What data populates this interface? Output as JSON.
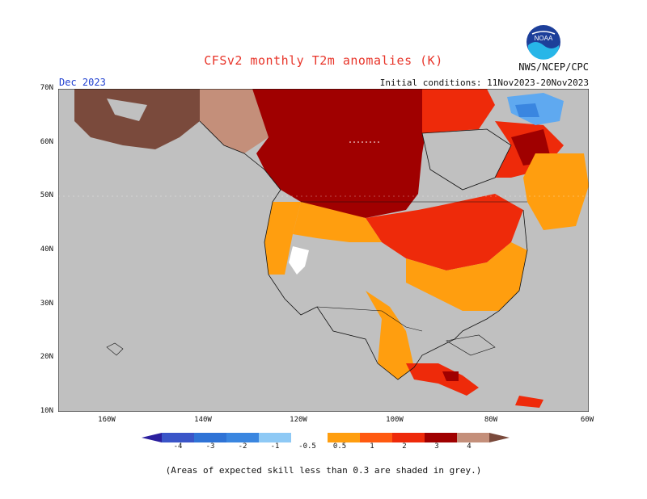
{
  "header": {
    "title": "CFSv2 monthly T2m anomalies (K)",
    "agency": "NWS/NCEP/CPC",
    "month": "Dec 2023",
    "initial_conditions": "Initial conditions: 11Nov2023-20Nov2023",
    "logo_text": "NOAA"
  },
  "map": {
    "lat_labels": [
      "70N",
      "60N",
      "50N",
      "40N",
      "30N",
      "20N",
      "10N"
    ],
    "lon_labels": [
      "160W",
      "140W",
      "120W",
      "100W",
      "80W",
      "60W"
    ],
    "background_color": "#c0c0c0"
  },
  "colorbar": {
    "labels": [
      "-4",
      "-3",
      "-2",
      "-1",
      "-0.5",
      "0.5",
      "1",
      "2",
      "3",
      "4"
    ],
    "colors": [
      "#2b1f9e",
      "#3a55c8",
      "#3a86e0",
      "#5fa9f0",
      "#8ec9f5",
      "#ffffff",
      "#ff9e0f",
      "#ff5a10",
      "#ee2a0a",
      "#a00000",
      "#c48f7a",
      "#7a4a3c"
    ]
  },
  "footnote": "(Areas of expected skill less than 0.3 are shaded in grey.)"
}
